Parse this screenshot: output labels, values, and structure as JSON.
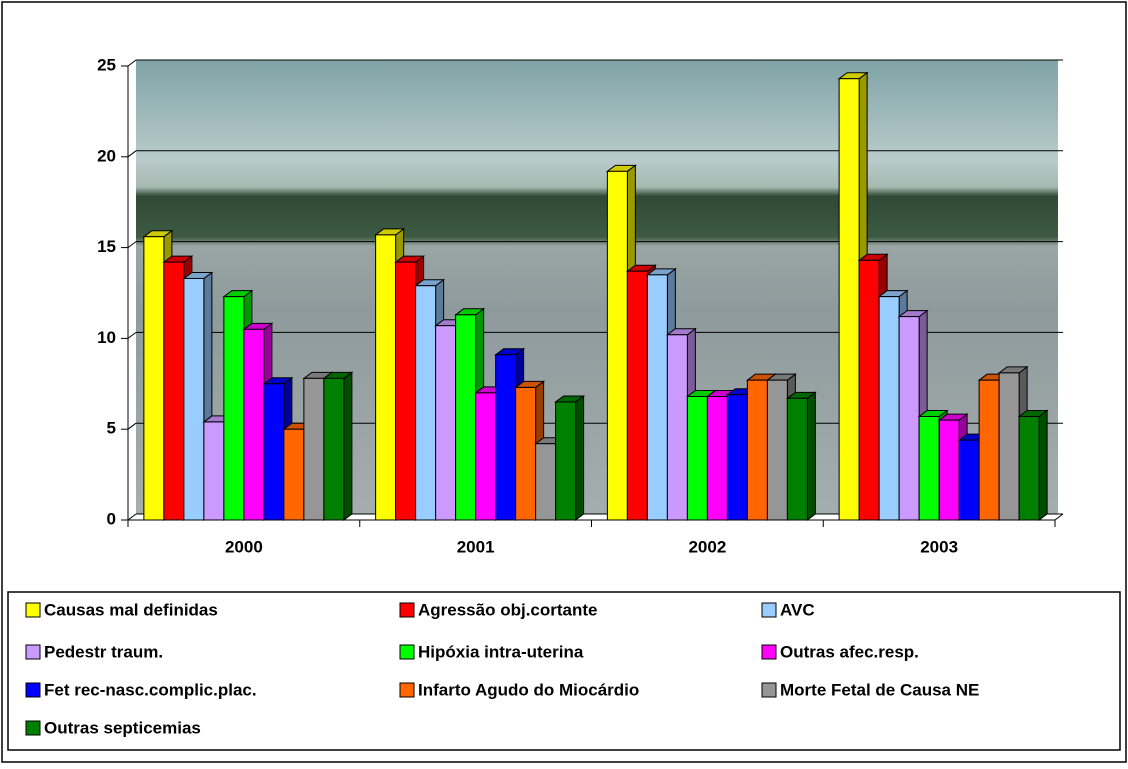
{
  "chart_data": {
    "type": "bar",
    "categories": [
      "2000",
      "2001",
      "2002",
      "2003"
    ],
    "series": [
      {
        "name": "Causas mal definidas",
        "color": "#ffff00",
        "values": [
          15.6,
          15.7,
          19.2,
          24.3
        ]
      },
      {
        "name": "Agressão obj.cortante",
        "color": "#ff0000",
        "values": [
          14.2,
          14.2,
          13.7,
          14.3
        ]
      },
      {
        "name": "AVC",
        "color": "#99ccff",
        "values": [
          13.3,
          12.9,
          13.5,
          12.3
        ]
      },
      {
        "name": "Pedestr traum.",
        "color": "#cc99ff",
        "values": [
          5.4,
          10.7,
          10.2,
          11.2
        ]
      },
      {
        "name": "Hipóxia intra-uterina",
        "color": "#00ff00",
        "values": [
          12.3,
          11.3,
          6.8,
          5.7
        ]
      },
      {
        "name": "Outras afec.resp.",
        "color": "#ff00ff",
        "values": [
          10.5,
          7.0,
          6.8,
          5.5
        ]
      },
      {
        "name": "Fet rec-nasc.complic.plac.",
        "color": "#0000ff",
        "values": [
          7.5,
          9.1,
          6.9,
          4.4
        ]
      },
      {
        "name": "Infarto Agudo do Miocárdio",
        "color": "#ff6600",
        "values": [
          5.0,
          7.3,
          7.7,
          7.7
        ]
      },
      {
        "name": "Morte Fetal de Causa NE",
        "color": "#969696",
        "values": [
          7.8,
          4.2,
          7.7,
          8.1
        ]
      },
      {
        "name": "Outras septicemias",
        "color": "#008000",
        "values": [
          7.8,
          6.5,
          6.7,
          5.7
        ]
      }
    ],
    "ylim": [
      0,
      25
    ],
    "yticks": [
      0,
      5,
      10,
      15,
      20,
      25
    ],
    "grid": true,
    "legend": "bottom"
  }
}
